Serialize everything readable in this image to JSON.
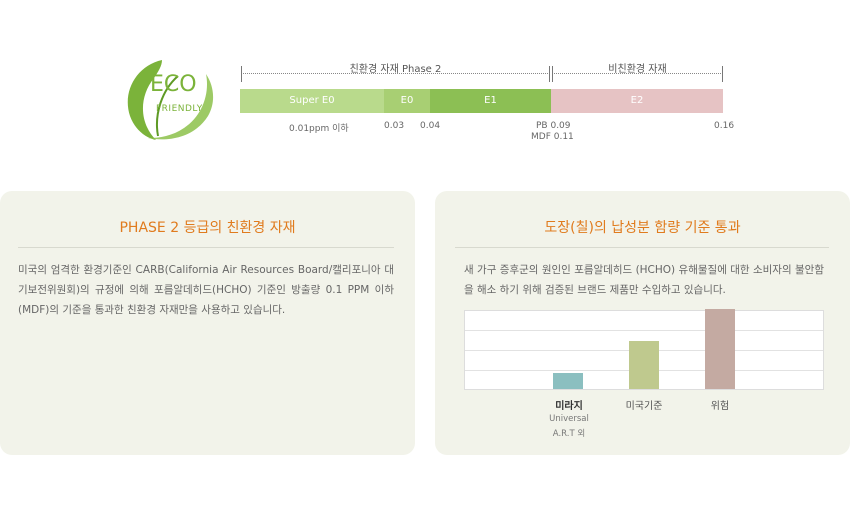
{
  "logo": {
    "line1": "ECO",
    "line2": "FRIENDLY",
    "color": "#7bb33a"
  },
  "scale": {
    "groups": [
      {
        "label": "친환경 자재 Phase 2"
      },
      {
        "label": "비친환경 자재"
      }
    ],
    "segments": [
      {
        "label": "Super E0",
        "from": 0,
        "to": 0.03,
        "color": "#b9da8c"
      },
      {
        "label": "E0",
        "from": 0.03,
        "to": 0.04,
        "color": "#a8cf73"
      },
      {
        "label": "E1",
        "from": 0.04,
        "to": 0.09,
        "color": "#8cbf54"
      },
      {
        "label": "E2",
        "from": 0.09,
        "to": 0.16,
        "color": "#e6c3c4"
      }
    ],
    "ticks": {
      "t0": "0.01ppm 이하",
      "t1": "0.03",
      "t2": "0.04",
      "t3a": "PB 0.09",
      "t3b": "MDF 0.11",
      "t4": "0.16"
    }
  },
  "card_left": {
    "title": "PHASE 2 등급의 친환경 자재",
    "body": "미국의 엄격한 환경기준인 CARB(California Air Resources Board/캘리포니아 대기보전위원회)의 규정에 의해 포름알데히드(HCHO) 기준인 방출량 0.1 PPM 이하 (MDF)의 기준을 통과한 친환경 자재만을 사용하고 있습니다."
  },
  "card_right": {
    "title": "도장(칠)의 납성분 함량 기준 통과",
    "body": "새 가구 증후군의 원인인 포름알데히드 (HCHO) 유해물질에 대한 소비자의 불안함을 해소 하기 위해  검증된 브랜드 제품만 수입하고 있습니다."
  },
  "chart_data": {
    "type": "bar",
    "categories": [
      "미라지",
      "미국기준",
      "위험"
    ],
    "sublabel": [
      "Universal",
      "A.R.T 외"
    ],
    "values": [
      1,
      3,
      5
    ],
    "ylim": [
      0,
      5
    ],
    "grid": true,
    "colors": [
      "#8bbfc0",
      "#bfc98e",
      "#c4aaa2"
    ]
  }
}
